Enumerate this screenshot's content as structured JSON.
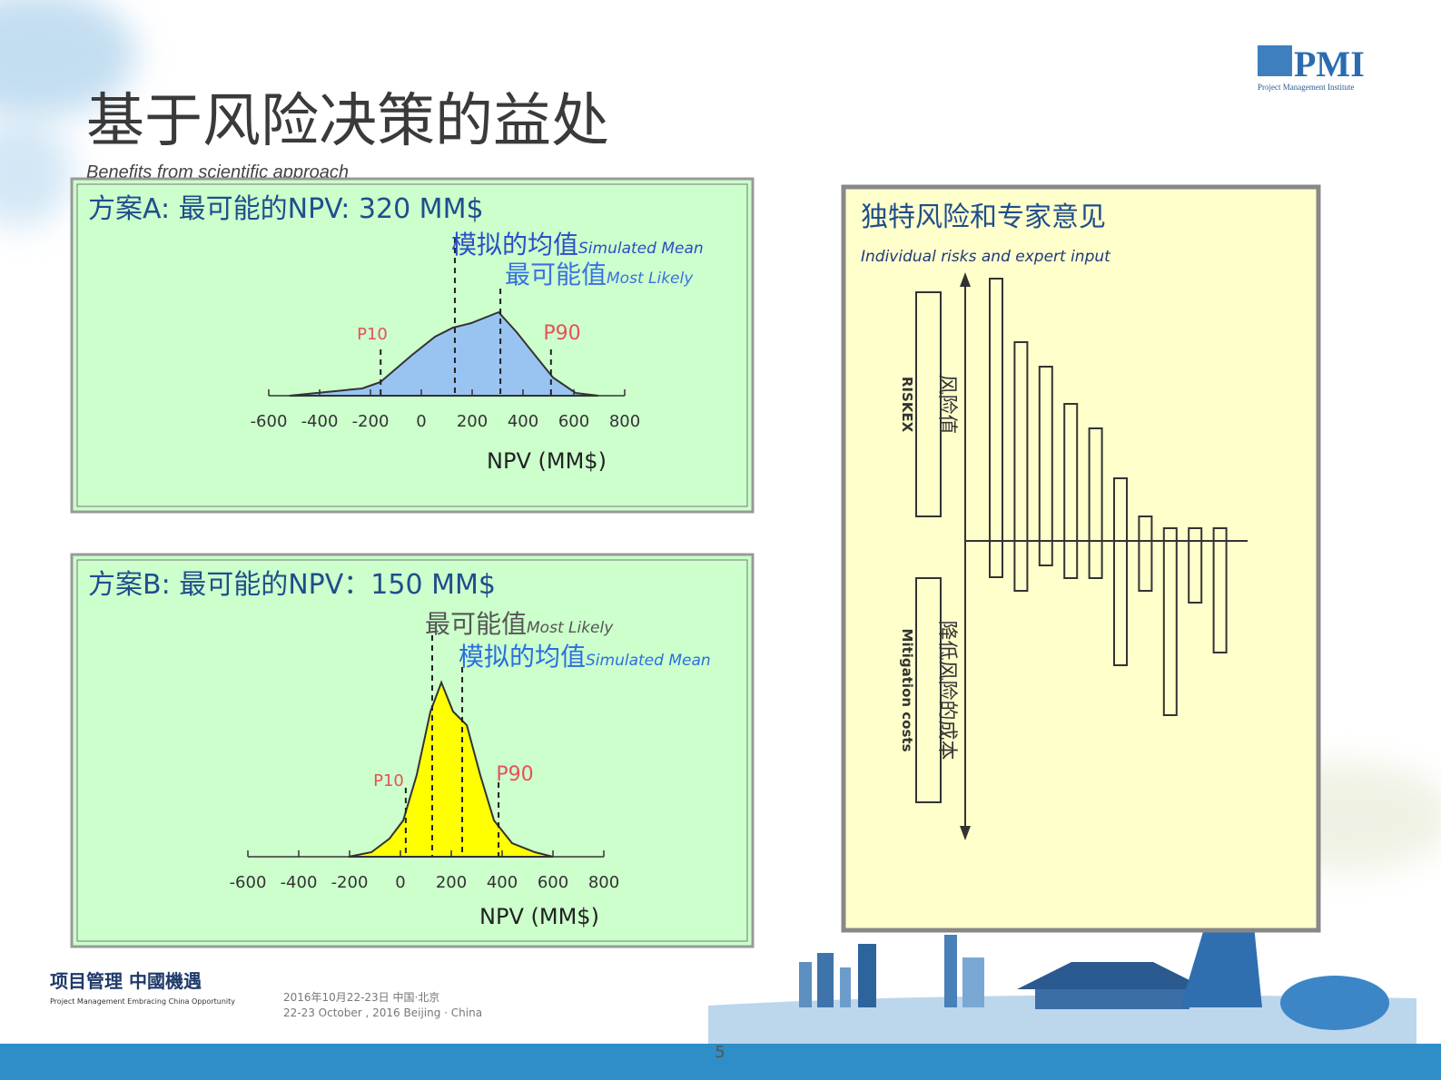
{
  "header": {
    "title": "基于风险决策的益处",
    "subtitle": "Benefits from scientific approach"
  },
  "logo": {
    "text": "PMI",
    "caption": "Project Management Institute"
  },
  "chart_data": [
    {
      "type": "area",
      "title": "方案A:  最可能的NPV: 320 MM$",
      "xlabel": "NPV (MM$)",
      "color": "#99c4f2",
      "x": [
        -518,
        -411,
        -339,
        -232,
        -161,
        -36,
        54,
        125,
        196,
        304,
        375,
        446,
        518,
        607,
        696
      ],
      "values": [
        0,
        3,
        5,
        8,
        15,
        45,
        65,
        75,
        80,
        92,
        70,
        45,
        20,
        3,
        0
      ],
      "xlim": [
        -600,
        800
      ],
      "xticks": [
        -600,
        -400,
        -200,
        0,
        200,
        400,
        600,
        800
      ],
      "ylim": [
        0,
        100
      ],
      "markers": [
        {
          "label": "P10",
          "x": -160,
          "color": "#e8505a"
        },
        {
          "label": "P90",
          "x": 510,
          "color": "#e8505a"
        },
        {
          "label": "模拟的均值",
          "sublabel": "Simulated Mean",
          "x": 132,
          "color": "#2a4fc4"
        },
        {
          "label": "最可能值",
          "sublabel": "Most Likely",
          "x": 311,
          "color": "#3a72e0"
        }
      ]
    },
    {
      "type": "area",
      "title": "方案B:  最可能的NPV：150 MM$",
      "xlabel": "NPV (MM$)",
      "color": "#ffff00",
      "x": [
        -204,
        -114,
        -43,
        11,
        64,
        118,
        161,
        207,
        261,
        314,
        368,
        439,
        529,
        600
      ],
      "values": [
        0,
        5,
        20,
        40,
        90,
        160,
        192,
        160,
        145,
        90,
        40,
        15,
        5,
        0
      ],
      "xlim": [
        -600,
        800
      ],
      "xticks": [
        -600,
        -400,
        -200,
        0,
        200,
        400,
        600,
        800
      ],
      "ylim": [
        0,
        200
      ],
      "markers": [
        {
          "label": "P10",
          "x": 21,
          "color": "#e8505a"
        },
        {
          "label": "P90",
          "x": 386,
          "color": "#e8505a"
        },
        {
          "label": "最可能值",
          "sublabel": "Most Likely",
          "x": 125,
          "color": "#555555"
        },
        {
          "label": "模拟的均值",
          "sublabel": "Simulated Mean",
          "x": 243,
          "color": "#2a6fe0"
        }
      ]
    },
    {
      "type": "bar",
      "title": "独特风险和专家意见",
      "subtitle": "Individual risks and expert input",
      "ylim": [
        -330,
        300
      ],
      "series": [
        {
          "name": "风险值",
          "subname": "RISKEX",
          "color": "#333333",
          "values": [
            289,
            219,
            192,
            151,
            124,
            69,
            27,
            14,
            14,
            14
          ]
        },
        {
          "name": "降低风险的成本",
          "subname": "Mitigation costs",
          "color": "#333333",
          "values": [
            -40,
            -55,
            -27,
            -41,
            -41,
            -137,
            -55,
            -192,
            -68,
            -123
          ]
        }
      ]
    }
  ],
  "footer": {
    "brand": "项目管理 中國機遇",
    "brand_sub": "Project Management Embracing China Opportunity",
    "date_cn": "2016年10月22-23日 中国·北京",
    "date_en": "22-23 October , 2016 Beijing · China",
    "page": "5"
  }
}
